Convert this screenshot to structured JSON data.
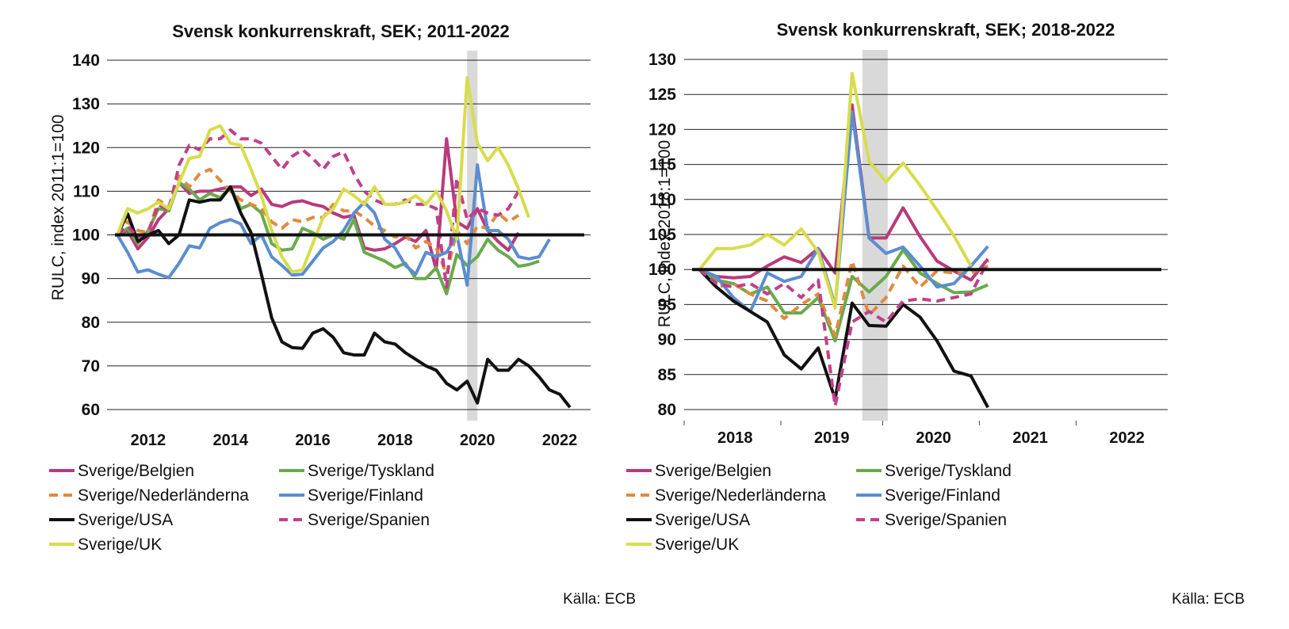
{
  "chart_data": [
    {
      "type": "line",
      "title": "Svensk konkurrenskraft, SEK; 2011-2022",
      "ylabel": "RULC, index 2011:1=100",
      "xlabel": "",
      "ylim": [
        60,
        140
      ],
      "yticks": [
        60,
        70,
        80,
        90,
        100,
        110,
        120,
        130,
        140
      ],
      "xlim": [
        2011.0,
        2022.75
      ],
      "xticks": [
        {
          "label": "2012",
          "x": 2012.0
        },
        {
          "label": "2014",
          "x": 2014.0
        },
        {
          "label": "2016",
          "x": 2016.0
        },
        {
          "label": "2018",
          "x": 2018.0
        },
        {
          "label": "2020",
          "x": 2020.0
        },
        {
          "label": "2022",
          "x": 2022.0
        }
      ],
      "shaded_region": [
        2019.75,
        2020.0
      ],
      "reference_line": 100,
      "grid": "horizontal",
      "source": "Källa: ECB",
      "x_start": 2011.25,
      "x_step": 0.25,
      "series": [
        {
          "name": "Sverige/Belgien",
          "color": "#b83a7b",
          "dash": "solid",
          "values": [
            100,
            101,
            96.8,
            99.5,
            103.5,
            106,
            112,
            109.5,
            110,
            110,
            110.5,
            111,
            111,
            109,
            110.5,
            107,
            106.5,
            107.5,
            107.8,
            107,
            106.5,
            105,
            104,
            104.5,
            97,
            96.5,
            96.8,
            98,
            99.5,
            98.5,
            101,
            92,
            122,
            103,
            101.5,
            106,
            101,
            98.5,
            96.5,
            100.5
          ]
        },
        {
          "name": "Sverige/Tyskland",
          "color": "#6aaa4c",
          "dash": "solid",
          "values": [
            100,
            101.5,
            98,
            101,
            106,
            105.5,
            112,
            110.5,
            108,
            109.5,
            108.5,
            111,
            106,
            107,
            105,
            98,
            96.5,
            96.8,
            101.5,
            100.5,
            99,
            100,
            99,
            103.5,
            96,
            95,
            94,
            92.5,
            93.5,
            90,
            90,
            92.5,
            86.5,
            95.5,
            93,
            95,
            99,
            96.5,
            95,
            92.8,
            93.2,
            94
          ]
        },
        {
          "name": "Sverige/Nederländerna",
          "color": "#e08a3e",
          "dash": "dashed",
          "values": [
            100,
            103,
            101,
            100.5,
            108,
            106.5,
            113.5,
            111,
            114,
            115,
            112.5,
            110,
            108,
            107,
            106,
            103,
            101.5,
            103.5,
            103,
            104,
            104,
            107,
            105.5,
            105.5,
            104,
            102,
            101,
            99.5,
            100,
            97,
            98.5,
            97,
            91,
            101,
            98,
            102,
            101.5,
            105,
            103,
            104.5
          ]
        },
        {
          "name": "Sverige/Finland",
          "color": "#5b8dd0",
          "dash": "solid",
          "values": [
            100,
            96,
            91.5,
            92,
            91,
            90.2,
            93.5,
            97.5,
            97,
            101.5,
            102.8,
            103.5,
            102.5,
            98,
            100,
            95,
            93,
            90.8,
            91,
            94,
            97,
            98.5,
            101,
            105,
            107.5,
            105,
            99,
            97,
            93,
            91,
            96,
            95,
            96,
            100,
            88.5,
            116,
            101,
            101,
            99,
            95,
            94.5,
            95,
            99
          ]
        },
        {
          "name": "Sverige/USA",
          "color": "#111111",
          "dash": "solid",
          "values": [
            100,
            104.8,
            98.5,
            100,
            101,
            98,
            100,
            108,
            107.5,
            108,
            108,
            111,
            105,
            100.5,
            91,
            81,
            75.5,
            74.2,
            74,
            77.5,
            78.5,
            76.5,
            73,
            72.5,
            72.5,
            77.5,
            75.5,
            75,
            73,
            71.5,
            70,
            69,
            66,
            64.5,
            66.5,
            61.5,
            71.5,
            69,
            69,
            71.5,
            70,
            67.5,
            64.5,
            63.5,
            60.5
          ]
        },
        {
          "name": "Sverige/Spanien",
          "color": "#c0408a",
          "dash": "dashed",
          "values": [
            100,
            102,
            99.5,
            100.5,
            107,
            105.5,
            116,
            120.5,
            119.5,
            122,
            122,
            124,
            122,
            122,
            121,
            118,
            115,
            118,
            119.5,
            117.5,
            115,
            118,
            119,
            114,
            110,
            108,
            107,
            107,
            108,
            107,
            107,
            106,
            88,
            113,
            103.5,
            106,
            105,
            104.5,
            106,
            110
          ]
        },
        {
          "name": "Sverige/UK",
          "color": "#d7dc4c",
          "dash": "solid",
          "values": [
            100,
            106,
            105,
            106,
            107.5,
            106,
            112,
            117.5,
            118,
            124,
            125,
            121,
            120.5,
            115,
            109,
            101,
            95,
            91.5,
            92,
            98,
            104,
            106,
            110.5,
            109,
            107,
            111,
            107,
            107,
            107.5,
            109,
            107,
            110,
            105.5,
            99,
            136,
            121,
            117,
            120,
            116,
            110.5,
            104
          ]
        }
      ]
    },
    {
      "type": "line",
      "title": "Svensk konkurrenskraft, SEK; 2018-2022",
      "ylabel": "RULC, index 2018:1=100",
      "xlabel": "",
      "ylim": [
        80,
        130
      ],
      "yticks": [
        80,
        85,
        90,
        95,
        100,
        105,
        110,
        115,
        120,
        125,
        130
      ],
      "xlim": [
        2017.75,
        2022.5
      ],
      "xticks": [
        {
          "label": "2018",
          "x": 2018.25
        },
        {
          "label": "2019",
          "x": 2019.2
        },
        {
          "label": "2020",
          "x": 2020.2
        },
        {
          "label": "2021",
          "x": 2021.15
        },
        {
          "label": "2022",
          "x": 2022.1
        }
      ],
      "minor_ticks": [
        2017.75,
        2018.7,
        2019.7,
        2020.65,
        2021.6
      ],
      "shaded_region": [
        2019.5,
        2019.75
      ],
      "reference_line": 100,
      "grid": "horizontal",
      "source": "Källa: ECB",
      "x_start": 2017.9,
      "x_step": 0.1667,
      "series": [
        {
          "name": "Sverige/Belgien",
          "color": "#b83a7b",
          "dash": "solid",
          "values": [
            100,
            99,
            98.8,
            99,
            100.5,
            101.8,
            101,
            103,
            99.5,
            123.5,
            104.5,
            104.5,
            108.8,
            104.7,
            101.2,
            99.8,
            98.5,
            101.5
          ]
        },
        {
          "name": "Sverige/Tyskland",
          "color": "#6aaa4c",
          "dash": "solid",
          "values": [
            100,
            98.5,
            98,
            96.5,
            97.5,
            93.8,
            93.8,
            96,
            89.8,
            99,
            96.8,
            99,
            102.8,
            99.5,
            98,
            96.7,
            96.8,
            97.8
          ]
        },
        {
          "name": "Sverige/Nederländerna",
          "color": "#e08a3e",
          "dash": "dashed",
          "values": [
            100,
            97.5,
            98,
            96.5,
            95.5,
            93,
            95,
            96.5,
            90.5,
            101.2,
            93.5,
            96,
            100.5,
            97.5,
            99.8,
            99.5,
            99.5,
            100.5
          ]
        },
        {
          "name": "Sverige/Finland",
          "color": "#5b8dd0",
          "dash": "solid",
          "values": [
            100,
            99,
            96,
            94,
            99.5,
            98.3,
            99,
            103,
            94.8,
            122.5,
            104.5,
            102.3,
            103.2,
            100.5,
            97.5,
            98,
            100.5,
            103.3
          ]
        },
        {
          "name": "Sverige/USA",
          "color": "#111111",
          "dash": "solid",
          "values": [
            100,
            97.5,
            95.5,
            94,
            92.5,
            87.8,
            85.8,
            88.8,
            81.5,
            95.2,
            92,
            91.9,
            95,
            93.2,
            89.8,
            85.5,
            84.8,
            80.3
          ]
        },
        {
          "name": "Sverige/Spanien",
          "color": "#c0408a",
          "dash": "dashed",
          "values": [
            100,
            98,
            97.5,
            98,
            96.5,
            98,
            96,
            98.5,
            80.5,
            92.5,
            94,
            92.5,
            95.5,
            95.8,
            95.5,
            96,
            96.5,
            101.2
          ]
        },
        {
          "name": "Sverige/UK",
          "color": "#d7dc4c",
          "dash": "solid",
          "values": [
            100,
            103,
            103,
            103.5,
            105,
            103.5,
            105.8,
            102.5,
            94.5,
            128,
            115.5,
            112.5,
            115.2,
            112,
            108.5,
            104.8,
            100.5
          ]
        }
      ]
    }
  ]
}
